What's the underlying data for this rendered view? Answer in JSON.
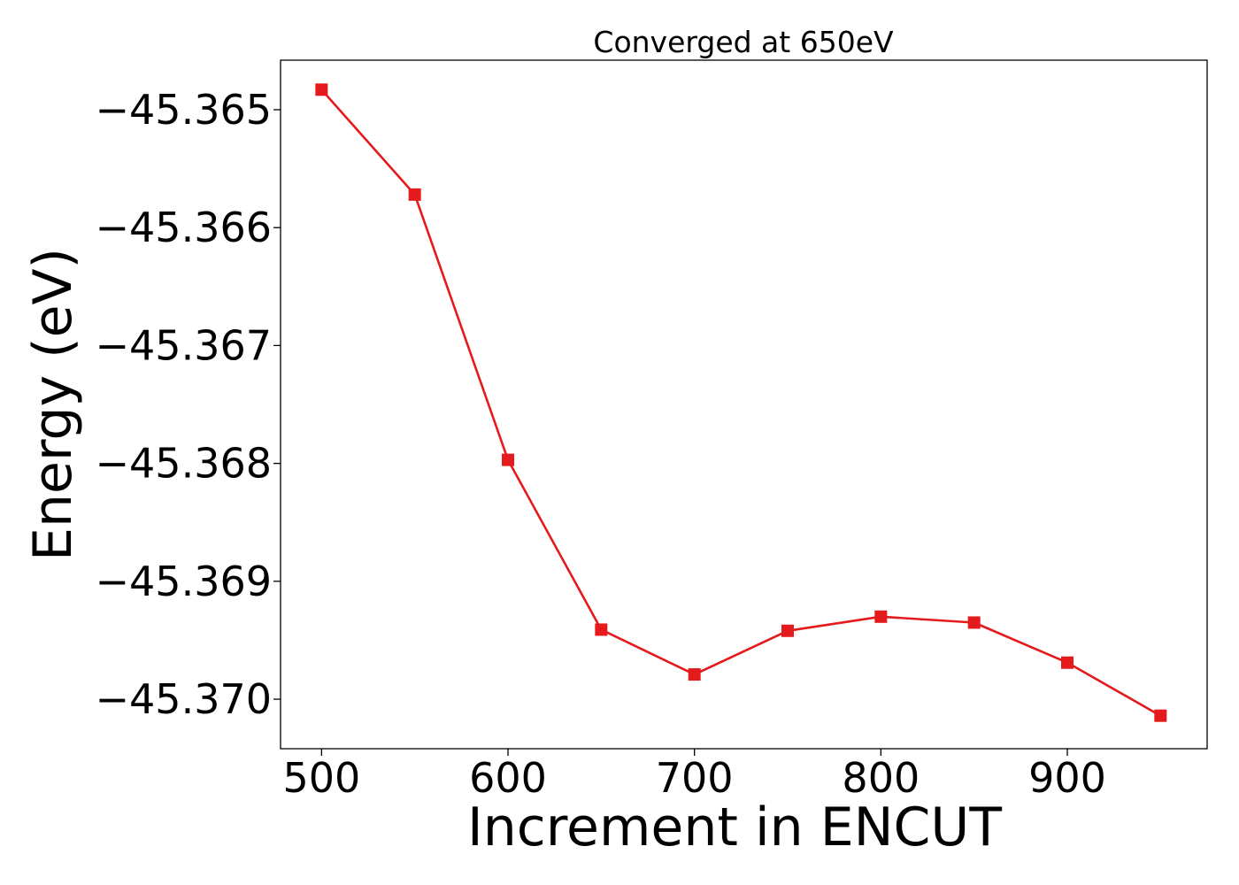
{
  "chart_data": {
    "type": "line",
    "title": "Converged at 650eV",
    "xlabel": "Increment in ENCUT",
    "ylabel": "Energy (eV)",
    "xlim": [
      478,
      975
    ],
    "ylim": [
      -45.37042,
      -45.36458
    ],
    "x_ticks": [
      500,
      600,
      700,
      800,
      900
    ],
    "x_tick_labels": [
      "500",
      "600",
      "700",
      "800",
      "900"
    ],
    "y_ticks": [
      -45.365,
      -45.366,
      -45.367,
      -45.368,
      -45.369,
      -45.37
    ],
    "y_tick_labels": [
      "−45.365",
      "−45.366",
      "−45.367",
      "−45.368",
      "−45.369",
      "−45.370"
    ],
    "grid": false,
    "series": [
      {
        "x": [
          500,
          550,
          600,
          650,
          700,
          750,
          800,
          850,
          900,
          950
        ],
        "y": [
          -45.36483,
          -45.36572,
          -45.36797,
          -45.36941,
          -45.36979,
          -45.36942,
          -45.3693,
          -45.36935,
          -45.36969,
          -45.37014
        ],
        "color": "#e41a1c",
        "marker": "square"
      }
    ]
  }
}
